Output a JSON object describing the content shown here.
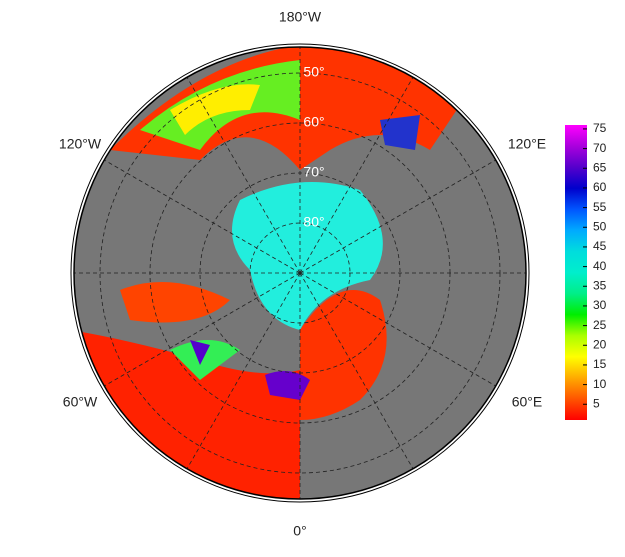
{
  "map": {
    "longitude_labels": [
      "180°W",
      "120°W",
      "120°E",
      "60°W",
      "60°E",
      "0°"
    ],
    "latitude_labels": [
      "50°",
      "60°",
      "70°",
      "80°"
    ],
    "colorbar": {
      "lim": [
        1,
        76
      ],
      "ticks": [
        5,
        10,
        15,
        20,
        25,
        30,
        35,
        40,
        45,
        50,
        55,
        60,
        65,
        70,
        75
      ],
      "colors": [
        "#ff0000",
        "#ff5500",
        "#ffaa00",
        "#ffff00",
        "#aaff00",
        "#00ee00",
        "#00ee88",
        "#00eecc",
        "#00dddd",
        "#00aaff",
        "#0055ff",
        "#0000cc",
        "#5500cc",
        "#aa00dd",
        "#ff00ff"
      ]
    }
  }
}
